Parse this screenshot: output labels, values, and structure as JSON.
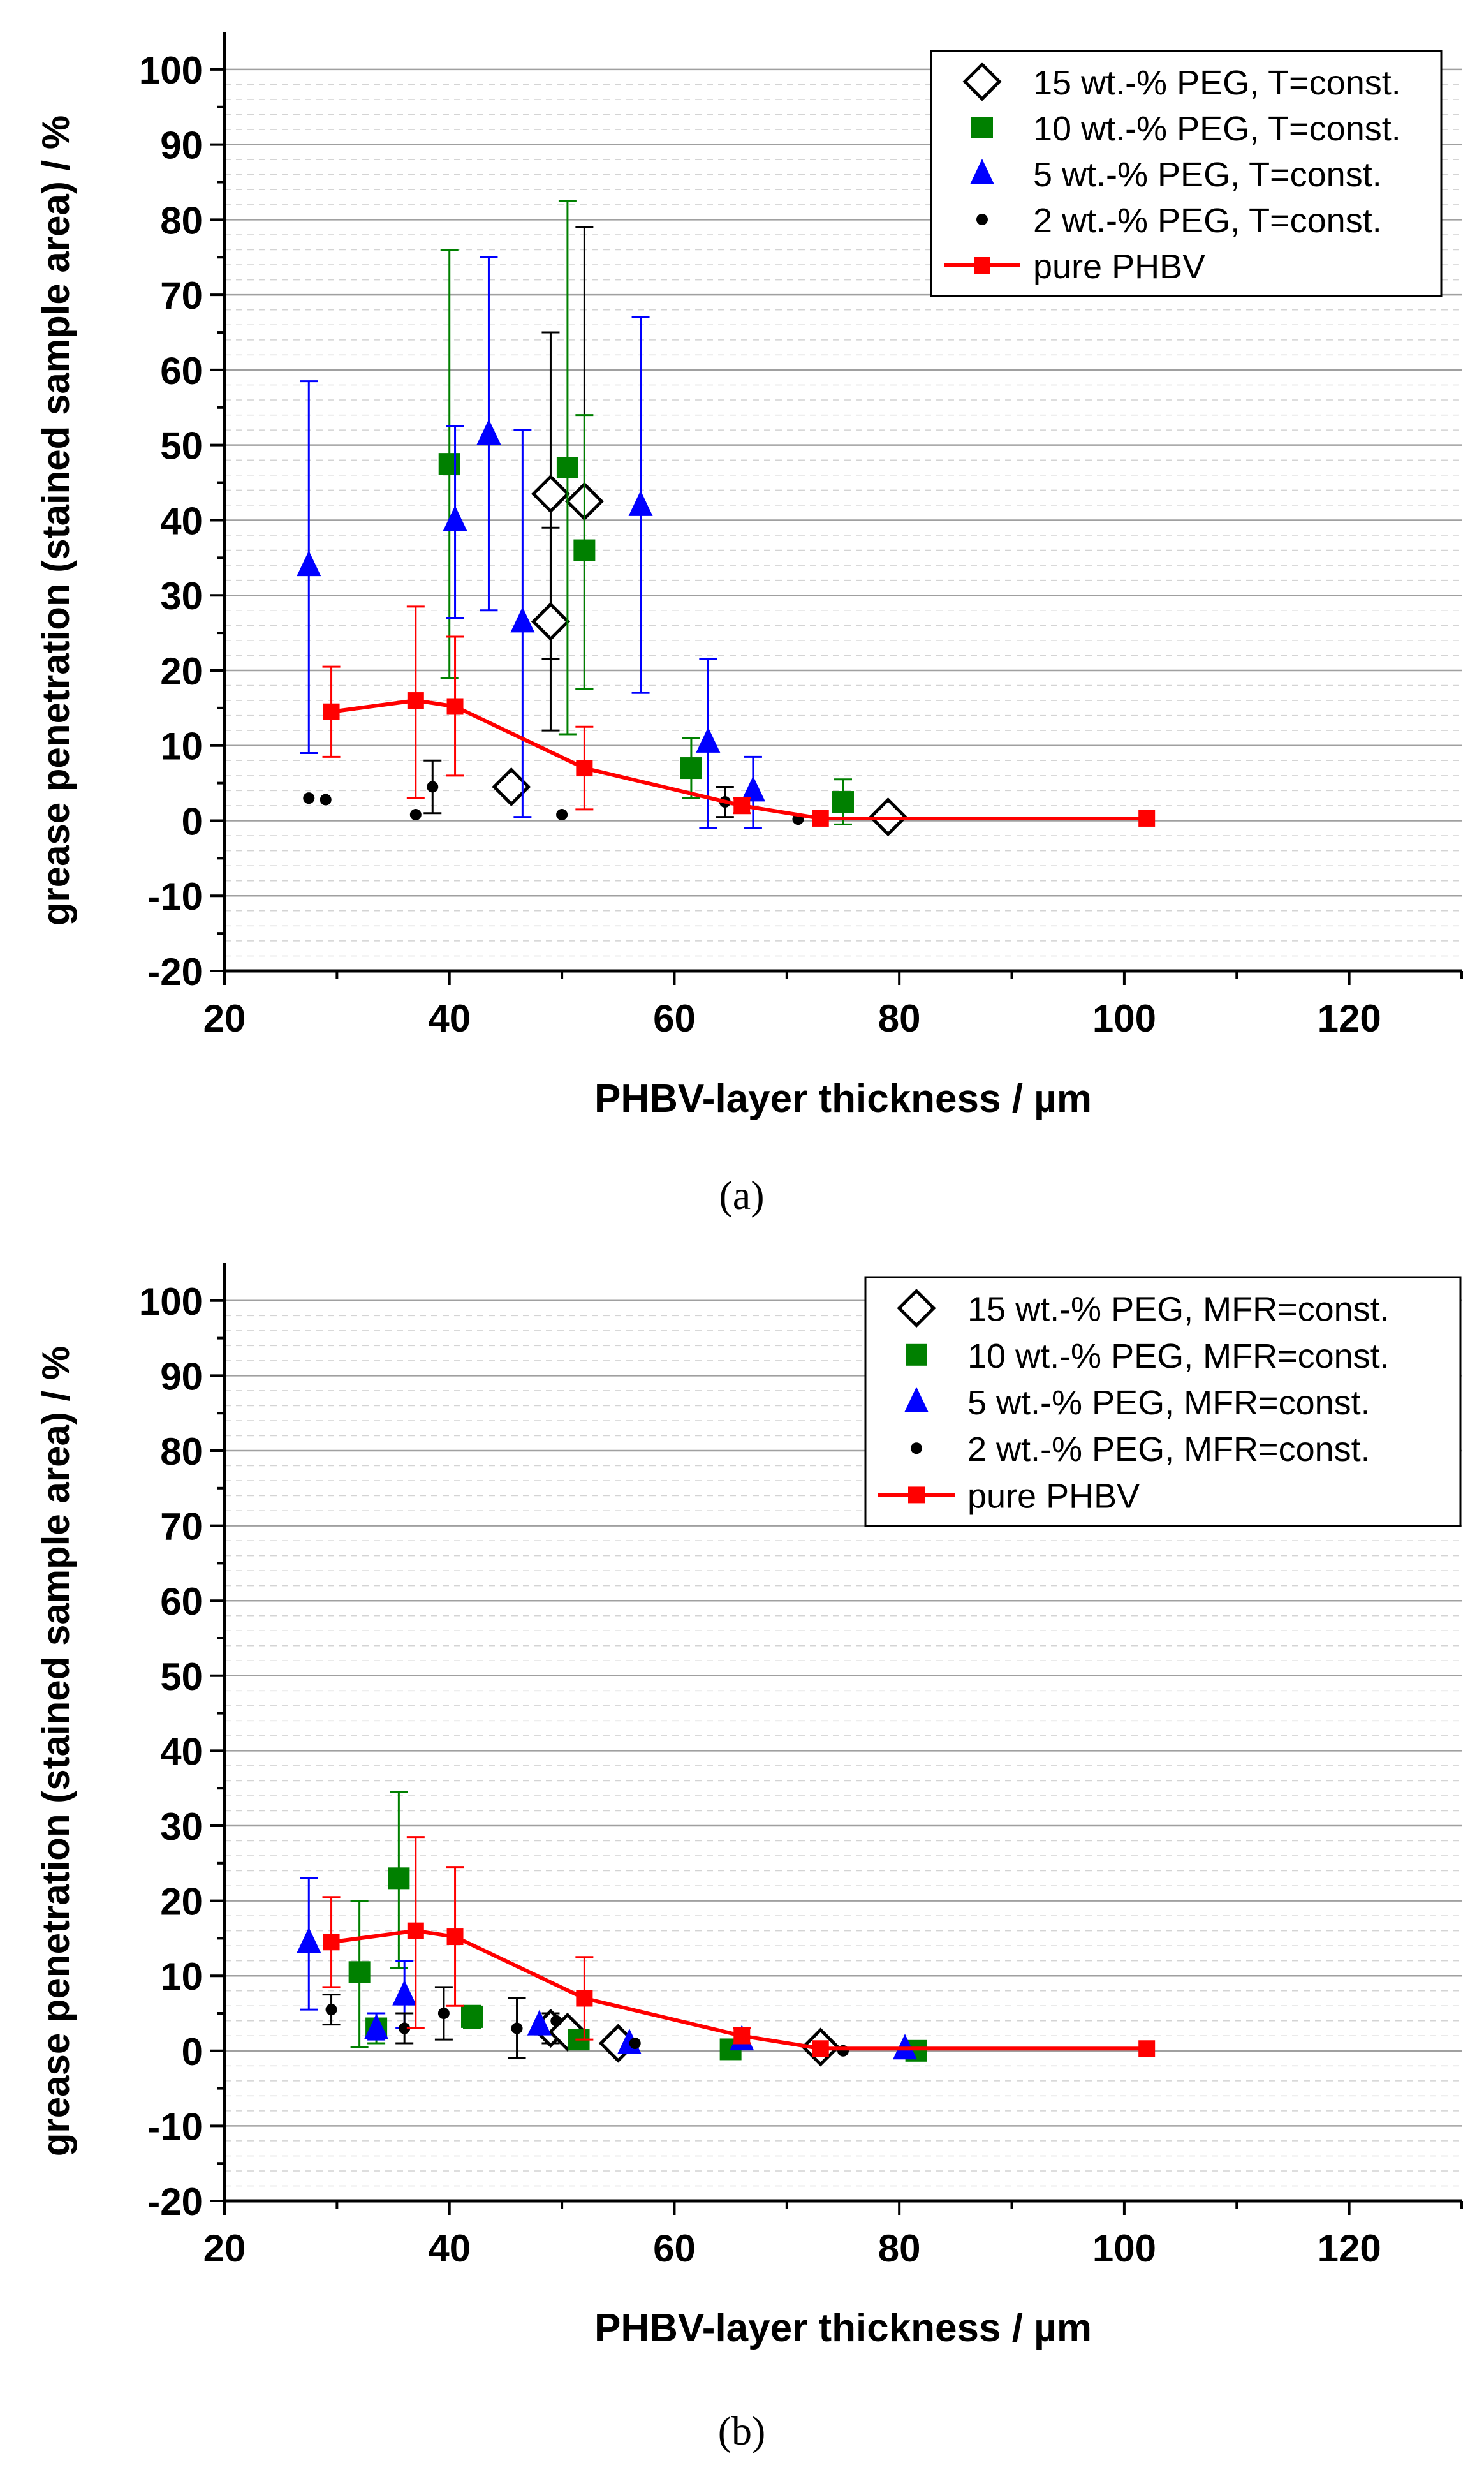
{
  "colors": {
    "pure_phbv": "#ff0000",
    "peg15": "#000000",
    "peg10": "#008000",
    "peg5": "#0000ff",
    "peg2": "#000000",
    "grid": "#c8c8c8",
    "axis": "#000000"
  },
  "chart_data": [
    {
      "type": "scatter",
      "panel_label": "(a)",
      "xlabel": "PHBV-layer thickness / µm",
      "ylabel": "grease penetration (stained sample area) / %",
      "xlim": [
        20,
        130
      ],
      "ylim": [
        -20,
        105
      ],
      "x_ticks": [
        20,
        40,
        60,
        80,
        100,
        120
      ],
      "y_ticks": [
        -20,
        -10,
        0,
        10,
        20,
        30,
        40,
        50,
        60,
        70,
        80,
        90,
        100
      ],
      "grid": "horizontal",
      "legend_position": "top-right",
      "series": [
        {
          "name": "15 wt.-% PEG, T=const.",
          "marker": "diamond-open",
          "color": "#000000",
          "points": [
            {
              "x": 45.5,
              "y": 4.5
            },
            {
              "x": 49.0,
              "y": 43.5,
              "err_low": 21.5,
              "err_high": 65.0
            },
            {
              "x": 49.0,
              "y": 26.5,
              "err_low": 12.0,
              "err_high": 39.0
            },
            {
              "x": 52.0,
              "y": 42.5,
              "err_low": 17.5,
              "err_high": 79.0
            },
            {
              "x": 79.0,
              "y": 0.5
            }
          ]
        },
        {
          "name": "10 wt.-% PEG, T=const.",
          "marker": "square",
          "color": "#008000",
          "points": [
            {
              "x": 40.0,
              "y": 47.5,
              "err_low": 19.0,
              "err_high": 76.0
            },
            {
              "x": 50.5,
              "y": 47.0,
              "err_low": 11.5,
              "err_high": 82.5
            },
            {
              "x": 52.0,
              "y": 36.0,
              "err_low": 17.5,
              "err_high": 54.0
            },
            {
              "x": 61.5,
              "y": 7.0,
              "err_low": 3.0,
              "err_high": 11.0
            },
            {
              "x": 75.0,
              "y": 2.5,
              "err_low": -0.5,
              "err_high": 5.5
            }
          ]
        },
        {
          "name": "5 wt.-% PEG, T=const.",
          "marker": "triangle",
          "color": "#0000ff",
          "points": [
            {
              "x": 27.5,
              "y": 34.0,
              "err_low": 9.0,
              "err_high": 58.5
            },
            {
              "x": 40.5,
              "y": 40.0,
              "err_low": 27.0,
              "err_high": 52.5
            },
            {
              "x": 43.5,
              "y": 51.5,
              "err_low": 28.0,
              "err_high": 75.0
            },
            {
              "x": 46.5,
              "y": 26.5,
              "err_low": 0.5,
              "err_high": 52.0
            },
            {
              "x": 57.0,
              "y": 42.0,
              "err_low": 17.0,
              "err_high": 67.0
            },
            {
              "x": 63.0,
              "y": 10.5,
              "err_low": -1.0,
              "err_high": 21.5
            },
            {
              "x": 67.0,
              "y": 4.0,
              "err_low": -1.0,
              "err_high": 8.5
            }
          ]
        },
        {
          "name": "2 wt.-% PEG, T=const.",
          "marker": "circle",
          "color": "#000000",
          "points": [
            {
              "x": 27.5,
              "y": 3.0
            },
            {
              "x": 29.0,
              "y": 2.8
            },
            {
              "x": 37.0,
              "y": 0.8
            },
            {
              "x": 38.5,
              "y": 4.5,
              "err_low": 1.0,
              "err_high": 8.0
            },
            {
              "x": 50.0,
              "y": 0.8
            },
            {
              "x": 64.5,
              "y": 2.5,
              "err_low": 0.5,
              "err_high": 4.5
            },
            {
              "x": 71.0,
              "y": 0.2
            }
          ]
        },
        {
          "name": "pure PHBV",
          "marker": "square-line",
          "color": "#ff0000",
          "points": [
            {
              "x": 29.5,
              "y": 14.5,
              "err_low": 8.5,
              "err_high": 20.5
            },
            {
              "x": 37.0,
              "y": 16.0,
              "err_low": 3.0,
              "err_high": 28.5
            },
            {
              "x": 40.5,
              "y": 15.2,
              "err_low": 6.0,
              "err_high": 24.5
            },
            {
              "x": 52.0,
              "y": 7.0,
              "err_low": 1.5,
              "err_high": 12.5
            },
            {
              "x": 66.0,
              "y": 2.0,
              "err_low": 1.0,
              "err_high": 3.0
            },
            {
              "x": 73.0,
              "y": 0.3
            },
            {
              "x": 102.0,
              "y": 0.3
            }
          ]
        }
      ]
    },
    {
      "type": "scatter",
      "panel_label": "(b)",
      "xlabel": "PHBV-layer thickness / µm",
      "ylabel": "grease penetration (stained sample area) / %",
      "xlim": [
        20,
        130
      ],
      "ylim": [
        -20,
        105
      ],
      "x_ticks": [
        20,
        40,
        60,
        80,
        100,
        120
      ],
      "y_ticks": [
        -20,
        -10,
        0,
        10,
        20,
        30,
        40,
        50,
        60,
        70,
        80,
        90,
        100
      ],
      "grid": "horizontal",
      "legend_position": "top-right",
      "series": [
        {
          "name": "15 wt.-% PEG, MFR=const.",
          "marker": "diamond-open",
          "color": "#000000",
          "points": [
            {
              "x": 49.0,
              "y": 3.0,
              "err_low": 1.0,
              "err_high": 5.0
            },
            {
              "x": 50.5,
              "y": 2.5
            },
            {
              "x": 55.0,
              "y": 1.0
            },
            {
              "x": 73.0,
              "y": 0.5
            }
          ]
        },
        {
          "name": "10 wt.-% PEG, MFR=const.",
          "marker": "square",
          "color": "#008000",
          "points": [
            {
              "x": 32.0,
              "y": 10.5,
              "err_low": 0.5,
              "err_high": 20.0
            },
            {
              "x": 33.5,
              "y": 3.0,
              "err_low": 1.0,
              "err_high": 5.0
            },
            {
              "x": 35.5,
              "y": 23.0,
              "err_low": 11.0,
              "err_high": 34.5
            },
            {
              "x": 42.0,
              "y": 4.5,
              "err_low": 3.0,
              "err_high": 6.0
            },
            {
              "x": 51.5,
              "y": 1.5
            },
            {
              "x": 65.0,
              "y": 0.2
            },
            {
              "x": 81.5,
              "y": 0.0
            }
          ]
        },
        {
          "name": "5 wt.-% PEG, MFR=const.",
          "marker": "triangle",
          "color": "#0000ff",
          "points": [
            {
              "x": 27.5,
              "y": 14.5,
              "err_low": 5.5,
              "err_high": 23.0
            },
            {
              "x": 33.5,
              "y": 3.0,
              "err_low": 1.5,
              "err_high": 5.0
            },
            {
              "x": 36.0,
              "y": 7.5,
              "err_low": 3.0,
              "err_high": 12.0
            },
            {
              "x": 48.0,
              "y": 3.5
            },
            {
              "x": 56.0,
              "y": 1.0
            },
            {
              "x": 66.0,
              "y": 1.5
            },
            {
              "x": 80.5,
              "y": 0.3
            }
          ]
        },
        {
          "name": "2 wt.-% PEG, MFR=const.",
          "marker": "circle",
          "color": "#000000",
          "points": [
            {
              "x": 29.5,
              "y": 5.5,
              "err_low": 3.5,
              "err_high": 7.5
            },
            {
              "x": 36.0,
              "y": 3.0,
              "err_low": 1.0,
              "err_high": 5.0
            },
            {
              "x": 39.5,
              "y": 5.0,
              "err_low": 1.5,
              "err_high": 8.5
            },
            {
              "x": 46.0,
              "y": 3.0,
              "err_low": -1.0,
              "err_high": 7.0
            },
            {
              "x": 49.5,
              "y": 4.0
            },
            {
              "x": 56.5,
              "y": 1.0
            },
            {
              "x": 75.0,
              "y": 0.0
            }
          ]
        },
        {
          "name": "pure PHBV",
          "marker": "square-line",
          "color": "#ff0000",
          "points": [
            {
              "x": 29.5,
              "y": 14.5,
              "err_low": 8.5,
              "err_high": 20.5
            },
            {
              "x": 37.0,
              "y": 16.0,
              "err_low": 3.0,
              "err_high": 28.5
            },
            {
              "x": 40.5,
              "y": 15.2,
              "err_low": 6.0,
              "err_high": 24.5
            },
            {
              "x": 52.0,
              "y": 7.0,
              "err_low": 1.5,
              "err_high": 12.5
            },
            {
              "x": 66.0,
              "y": 2.0,
              "err_low": 1.0,
              "err_high": 3.0
            },
            {
              "x": 73.0,
              "y": 0.3
            },
            {
              "x": 102.0,
              "y": 0.3
            }
          ]
        }
      ]
    }
  ]
}
